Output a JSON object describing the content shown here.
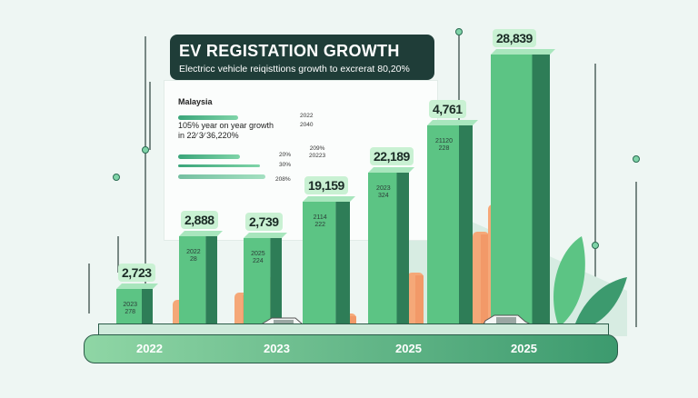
{
  "header": {
    "title": "EV REGISTATION GROWTH",
    "subtitle": "Electricc vehicle  reiqisttions growth to excrerat 80,20%"
  },
  "panel": {
    "region": "Malaysia",
    "note": "105% year on year growth in  22∕ 3∕ 36,220%",
    "bar_labels": [
      "2022",
      "2040",
      "20%",
      "30%",
      "208%"
    ],
    "side_label": "209%\n20223"
  },
  "colors": {
    "bar_green": "#5cc484",
    "bar_dark": "#2e7d57",
    "bar_orange": "#f5a878",
    "title_bg": "#1f3d38",
    "label_bg": "#c9f1d3"
  },
  "chart_data": {
    "type": "bar",
    "title": "EV REGISTATION GROWTH",
    "categories": [
      "2022",
      "2023",
      "2025",
      "2025"
    ],
    "bars": [
      {
        "label": "2,723",
        "value": 2723,
        "sub": [
          "2023",
          "278"
        ]
      },
      {
        "label": "2,888",
        "value": 2888,
        "sub": [
          "2022",
          "28"
        ]
      },
      {
        "label": "2,739",
        "value": 2739,
        "sub": [
          "2025",
          "224"
        ]
      },
      {
        "label": "19,159",
        "value": 19159,
        "sub": [
          "2114",
          "222"
        ]
      },
      {
        "label": "22,189",
        "value": 22189,
        "sub": [
          "2023",
          "324"
        ]
      },
      {
        "label": "4,761",
        "value": 4761,
        "sub": [
          "21120",
          "228"
        ]
      },
      {
        "label": "28,839",
        "value": 28839,
        "sub": [
          "",
          ""
        ]
      }
    ],
    "timeline_labels": [
      "2022",
      "2023",
      "2025",
      "2025"
    ],
    "grid": true
  }
}
